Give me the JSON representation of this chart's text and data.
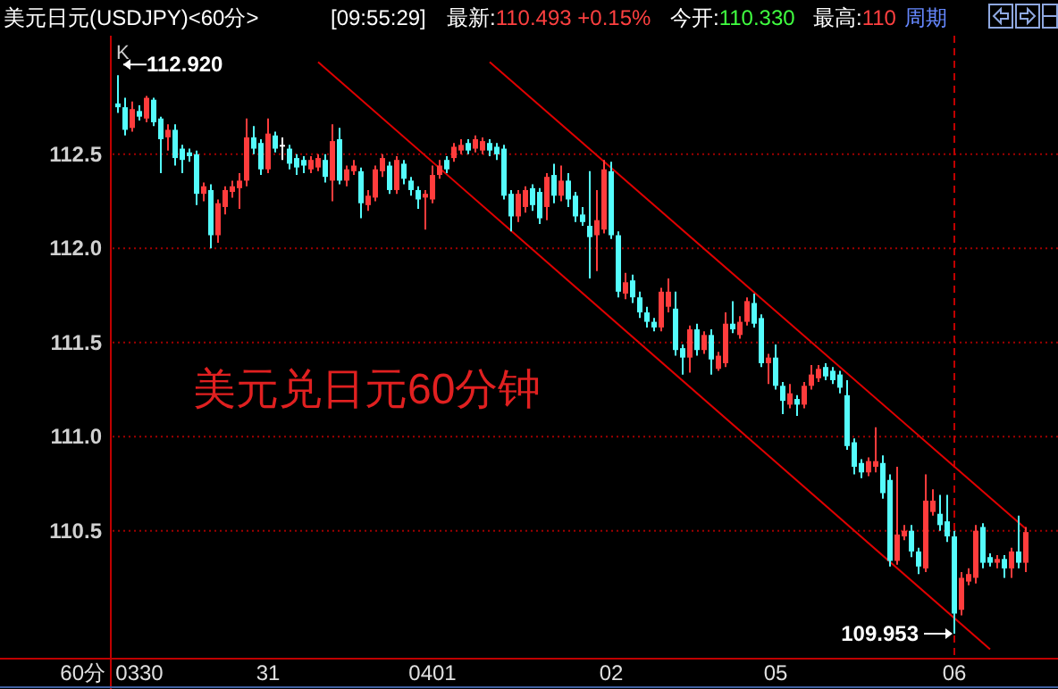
{
  "chart_data": {
    "type": "candlestick",
    "title": "美元日元(USDJPY)<60分>",
    "categories": [
      null,
      null,
      null,
      "0330",
      null,
      null,
      null,
      null,
      null,
      null,
      null,
      null,
      null,
      null,
      null,
      null,
      null,
      null,
      null,
      null,
      null,
      "31",
      null,
      null,
      null,
      null,
      null,
      null,
      null,
      null,
      null,
      null,
      null,
      null,
      null,
      null,
      null,
      null,
      null,
      null,
      null,
      null,
      null,
      null,
      "0401",
      null,
      null,
      null,
      null,
      null,
      null,
      null,
      null,
      null,
      null,
      null,
      null,
      null,
      null,
      null,
      null,
      null,
      null,
      null,
      null,
      null,
      null,
      null,
      null,
      "02",
      null,
      null,
      null,
      null,
      null,
      null,
      null,
      null,
      null,
      null,
      null,
      null,
      null,
      null,
      null,
      null,
      null,
      null,
      null,
      null,
      null,
      null,
      "05",
      null,
      null,
      null,
      null,
      null,
      null,
      null,
      null,
      null,
      null,
      null,
      null,
      null,
      null,
      null,
      null,
      null,
      null,
      null,
      null,
      null,
      null,
      null,
      null,
      "06",
      null,
      null,
      null,
      null,
      null,
      null,
      null,
      null,
      null,
      null
    ],
    "series": [
      {
        "type": "candlestick",
        "ohlc": [
          [
            112.77,
            112.92,
            112.72,
            112.75
          ],
          [
            112.75,
            112.8,
            112.6,
            112.63
          ],
          [
            112.64,
            112.78,
            112.62,
            112.74
          ],
          [
            112.73,
            112.76,
            112.68,
            112.7
          ],
          [
            112.69,
            112.81,
            112.67,
            112.8
          ],
          [
            112.79,
            112.8,
            112.65,
            112.67
          ],
          [
            112.69,
            112.7,
            112.4,
            112.58
          ],
          [
            112.59,
            112.66,
            112.52,
            112.63
          ],
          [
            112.63,
            112.66,
            112.44,
            112.48
          ],
          [
            112.53,
            112.55,
            112.4,
            112.47
          ],
          [
            112.51,
            112.53,
            112.46,
            112.49
          ],
          [
            112.5,
            112.52,
            112.23,
            112.29
          ],
          [
            112.29,
            112.35,
            112.25,
            112.33
          ],
          [
            112.31,
            112.34,
            112.0,
            112.07
          ],
          [
            112.07,
            112.26,
            112.03,
            112.24
          ],
          [
            112.22,
            112.33,
            112.18,
            112.31
          ],
          [
            112.3,
            112.36,
            112.27,
            112.33
          ],
          [
            112.32,
            112.4,
            112.21,
            112.36
          ],
          [
            112.36,
            112.69,
            112.33,
            112.59
          ],
          [
            112.59,
            112.65,
            112.5,
            112.53
          ],
          [
            112.56,
            112.58,
            112.39,
            112.42
          ],
          [
            112.42,
            112.69,
            112.4,
            112.61
          ],
          [
            112.6,
            112.62,
            112.51,
            112.53
          ],
          [
            112.55,
            112.59,
            112.47,
            112.55
          ],
          [
            112.53,
            112.55,
            112.42,
            112.45
          ],
          [
            112.48,
            112.5,
            112.39,
            112.43
          ],
          [
            112.47,
            112.49,
            112.4,
            112.44
          ],
          [
            112.42,
            112.49,
            112.4,
            112.47
          ],
          [
            112.43,
            112.5,
            112.41,
            112.48
          ],
          [
            112.47,
            112.5,
            112.35,
            112.38
          ],
          [
            112.36,
            112.66,
            112.25,
            112.57
          ],
          [
            112.58,
            112.64,
            112.34,
            112.36
          ],
          [
            112.36,
            112.44,
            112.33,
            112.42
          ],
          [
            112.41,
            112.47,
            112.39,
            112.44
          ],
          [
            112.41,
            112.43,
            112.16,
            112.24
          ],
          [
            112.23,
            112.31,
            112.2,
            112.28
          ],
          [
            112.27,
            112.44,
            112.25,
            112.42
          ],
          [
            112.41,
            112.5,
            112.38,
            112.48
          ],
          [
            112.44,
            112.46,
            112.29,
            112.31
          ],
          [
            112.31,
            112.49,
            112.29,
            112.47
          ],
          [
            112.45,
            112.47,
            112.34,
            112.37
          ],
          [
            112.36,
            112.38,
            112.28,
            112.31
          ],
          [
            112.31,
            112.33,
            112.21,
            112.26
          ],
          [
            112.27,
            112.31,
            112.1,
            112.29
          ],
          [
            112.26,
            112.44,
            112.24,
            112.39
          ],
          [
            112.39,
            112.47,
            112.37,
            112.44
          ],
          [
            112.47,
            112.49,
            112.4,
            112.42
          ],
          [
            112.48,
            112.56,
            112.46,
            112.54
          ],
          [
            112.52,
            112.58,
            112.5,
            112.55
          ],
          [
            112.56,
            112.58,
            112.5,
            112.52
          ],
          [
            112.53,
            112.6,
            112.51,
            112.58
          ],
          [
            112.52,
            112.59,
            112.5,
            112.57
          ],
          [
            112.56,
            112.58,
            112.49,
            112.52
          ],
          [
            112.54,
            112.56,
            112.47,
            112.5
          ],
          [
            112.53,
            112.55,
            112.26,
            112.28
          ],
          [
            112.29,
            112.31,
            112.09,
            112.17
          ],
          [
            112.17,
            112.31,
            112.14,
            112.29
          ],
          [
            112.22,
            112.33,
            112.19,
            112.31
          ],
          [
            112.32,
            112.34,
            112.2,
            112.23
          ],
          [
            112.3,
            112.32,
            112.13,
            112.16
          ],
          [
            112.22,
            112.4,
            112.15,
            112.38
          ],
          [
            112.39,
            112.45,
            112.24,
            112.28
          ],
          [
            112.28,
            112.44,
            112.25,
            112.36
          ],
          [
            112.36,
            112.4,
            112.22,
            112.26
          ],
          [
            112.28,
            112.3,
            112.14,
            112.17
          ],
          [
            112.18,
            112.22,
            112.12,
            112.14
          ],
          [
            112.12,
            112.41,
            111.84,
            112.06
          ],
          [
            112.07,
            112.31,
            111.88,
            112.15
          ],
          [
            112.1,
            112.47,
            112.08,
            112.42
          ],
          [
            112.41,
            112.46,
            112.05,
            112.07
          ],
          [
            112.07,
            112.09,
            111.74,
            111.77
          ],
          [
            111.76,
            111.87,
            111.73,
            111.82
          ],
          [
            111.83,
            111.86,
            111.71,
            111.74
          ],
          [
            111.74,
            111.77,
            111.63,
            111.66
          ],
          [
            111.66,
            111.69,
            111.58,
            111.61
          ],
          [
            111.61,
            111.63,
            111.56,
            111.58
          ],
          [
            111.58,
            111.79,
            111.56,
            111.77
          ],
          [
            111.69,
            111.84,
            111.66,
            111.77
          ],
          [
            111.68,
            111.77,
            111.43,
            111.46
          ],
          [
            111.47,
            111.49,
            111.33,
            111.42
          ],
          [
            111.42,
            111.59,
            111.34,
            111.57
          ],
          [
            111.57,
            111.6,
            111.43,
            111.46
          ],
          [
            111.46,
            111.56,
            111.44,
            111.54
          ],
          [
            111.54,
            111.57,
            111.33,
            111.41
          ],
          [
            111.36,
            111.45,
            111.35,
            111.43
          ],
          [
            111.39,
            111.66,
            111.37,
            111.6
          ],
          [
            111.6,
            111.72,
            111.55,
            111.57
          ],
          [
            111.54,
            111.64,
            111.52,
            111.61
          ],
          [
            111.61,
            111.74,
            111.59,
            111.72
          ],
          [
            111.71,
            111.76,
            111.58,
            111.6
          ],
          [
            111.63,
            111.65,
            111.37,
            111.39
          ],
          [
            111.39,
            111.44,
            111.28,
            111.42
          ],
          [
            111.42,
            111.49,
            111.25,
            111.27
          ],
          [
            111.27,
            111.29,
            111.12,
            111.19
          ],
          [
            111.17,
            111.28,
            111.15,
            111.23
          ],
          [
            111.2,
            111.22,
            111.11,
            111.17
          ],
          [
            111.17,
            111.29,
            111.15,
            111.27
          ],
          [
            111.27,
            111.38,
            111.25,
            111.33
          ],
          [
            111.31,
            111.38,
            111.29,
            111.36
          ],
          [
            111.37,
            111.39,
            111.3,
            111.32
          ],
          [
            111.35,
            111.37,
            111.28,
            111.3
          ],
          [
            111.33,
            111.35,
            111.23,
            111.26
          ],
          [
            111.22,
            111.3,
            110.93,
            110.95
          ],
          [
            110.97,
            110.99,
            110.8,
            110.84
          ],
          [
            110.86,
            110.88,
            110.78,
            110.81
          ],
          [
            110.81,
            110.89,
            110.79,
            110.87
          ],
          [
            110.84,
            111.05,
            110.81,
            110.87
          ],
          [
            110.86,
            110.9,
            110.67,
            110.7
          ],
          [
            110.77,
            110.8,
            110.31,
            110.34
          ],
          [
            110.34,
            110.84,
            110.32,
            110.48
          ],
          [
            110.47,
            110.53,
            110.45,
            110.5
          ],
          [
            110.5,
            110.53,
            110.36,
            110.39
          ],
          [
            110.39,
            110.41,
            110.27,
            110.31
          ],
          [
            110.3,
            110.8,
            110.28,
            110.66
          ],
          [
            110.6,
            110.72,
            110.58,
            110.66
          ],
          [
            110.59,
            110.69,
            110.5,
            110.53
          ],
          [
            110.55,
            110.69,
            110.44,
            110.47
          ],
          [
            110.47,
            110.5,
            109.953,
            110.06
          ],
          [
            110.08,
            110.28,
            110.05,
            110.25
          ],
          [
            110.23,
            110.3,
            110.21,
            110.27
          ],
          [
            110.25,
            110.53,
            110.22,
            110.5
          ],
          [
            110.52,
            110.54,
            110.3,
            110.33
          ],
          [
            110.36,
            110.38,
            110.31,
            110.33
          ],
          [
            110.33,
            110.37,
            110.3,
            110.35
          ],
          [
            110.35,
            110.37,
            110.25,
            110.3
          ],
          [
            110.3,
            110.41,
            110.25,
            110.39
          ],
          [
            110.39,
            110.58,
            110.3,
            110.33
          ],
          [
            110.33,
            110.52,
            110.28,
            110.493
          ]
        ],
        "colors": [
          "#54fcfc",
          "#54fcfc",
          "#ff3c3c",
          "#54fcfc",
          "#ff3c3c",
          "#54fcfc",
          "#54fcfc",
          "#ff3c3c",
          "#54fcfc",
          "#54fcfc",
          "#54fcfc",
          "#54fcfc",
          "#ff3c3c",
          "#54fcfc",
          "#ff3c3c",
          "#ff3c3c",
          "#ff3c3c",
          "#ff3c3c",
          "#ff3c3c",
          "#54fcfc",
          "#54fcfc",
          "#ff3c3c",
          "#54fcfc",
          "#ffffff",
          "#54fcfc",
          "#54fcfc",
          "#54fcfc",
          "#ff3c3c",
          "#ff3c3c",
          "#54fcfc",
          "#ff3c3c",
          "#54fcfc",
          "#ff3c3c",
          "#ff3c3c",
          "#54fcfc",
          "#ff3c3c",
          "#ff3c3c",
          "#ff3c3c",
          "#54fcfc",
          "#ff3c3c",
          "#54fcfc",
          "#54fcfc",
          "#54fcfc",
          "#ff3c3c",
          "#ff3c3c",
          "#ff3c3c",
          "#54fcfc",
          "#ff3c3c",
          "#ff3c3c",
          "#54fcfc",
          "#ff3c3c",
          "#ff3c3c",
          "#54fcfc",
          "#54fcfc",
          "#54fcfc",
          "#54fcfc",
          "#ff3c3c",
          "#ff3c3c",
          "#54fcfc",
          "#54fcfc",
          "#ff3c3c",
          "#54fcfc",
          "#ff3c3c",
          "#54fcfc",
          "#54fcfc",
          "#54fcfc",
          "#54fcfc",
          "#ff3c3c",
          "#ff3c3c",
          "#54fcfc",
          "#54fcfc",
          "#ff3c3c",
          "#54fcfc",
          "#54fcfc",
          "#54fcfc",
          "#54fcfc",
          "#ff3c3c",
          "#ff3c3c",
          "#54fcfc",
          "#54fcfc",
          "#ff3c3c",
          "#54fcfc",
          "#ff3c3c",
          "#54fcfc",
          "#ff3c3c",
          "#ff3c3c",
          "#54fcfc",
          "#ff3c3c",
          "#ff3c3c",
          "#54fcfc",
          "#54fcfc",
          "#ff3c3c",
          "#54fcfc",
          "#54fcfc",
          "#ff3c3c",
          "#54fcfc",
          "#ff3c3c",
          "#ff3c3c",
          "#ff3c3c",
          "#54fcfc",
          "#54fcfc",
          "#54fcfc",
          "#54fcfc",
          "#54fcfc",
          "#54fcfc",
          "#ff3c3c",
          "#ff3c3c",
          "#54fcfc",
          "#54fcfc",
          "#ff3c3c",
          "#ff3c3c",
          "#54fcfc",
          "#54fcfc",
          "#ff3c3c",
          "#ff3c3c",
          "#54fcfc",
          "#54fcfc",
          "#54fcfc",
          "#ff3c3c",
          "#ff3c3c",
          "#ff3c3c",
          "#54fcfc",
          "#54fcfc",
          "#ff3c3c",
          "#54fcfc",
          "#ff3c3c",
          "#54fcfc",
          "#ff3c3c"
        ]
      },
      {
        "type": "line",
        "color": "#e00000",
        "values": [
          null,
          null,
          null,
          null,
          null,
          null,
          null,
          null,
          null,
          null,
          null,
          null,
          null,
          null,
          null,
          null,
          null,
          null,
          null,
          null,
          null,
          null,
          null,
          null,
          null,
          null,
          null,
          null,
          112.99,
          null,
          null,
          null,
          null,
          null,
          null,
          null,
          null,
          null,
          null,
          null,
          null,
          null,
          null,
          null,
          null,
          null,
          null,
          null,
          null,
          null,
          null,
          null,
          null,
          null,
          null,
          null,
          null,
          null,
          null,
          null,
          null,
          null,
          null,
          null,
          null,
          null,
          null,
          null,
          null,
          null,
          null,
          null,
          null,
          null,
          null,
          null,
          null,
          null,
          null,
          null,
          null,
          null,
          null,
          null,
          null,
          null,
          null,
          null,
          null,
          null,
          null,
          null,
          null,
          null,
          null,
          null,
          null,
          null,
          null,
          null,
          null,
          null,
          null,
          null,
          null,
          null,
          null,
          null,
          null,
          null,
          null,
          null,
          null,
          null,
          null,
          null,
          null,
          null,
          null,
          null,
          null,
          null,
          109.87,
          null,
          null,
          null,
          null,
          null
        ]
      },
      {
        "type": "line",
        "color": "#e00000",
        "values": [
          null,
          null,
          null,
          null,
          null,
          null,
          null,
          null,
          null,
          null,
          null,
          null,
          null,
          null,
          null,
          null,
          null,
          null,
          null,
          null,
          null,
          null,
          null,
          null,
          null,
          null,
          null,
          null,
          null,
          null,
          null,
          null,
          null,
          null,
          null,
          null,
          null,
          null,
          null,
          null,
          null,
          null,
          null,
          null,
          null,
          null,
          null,
          null,
          null,
          null,
          null,
          null,
          112.99,
          null,
          null,
          null,
          null,
          null,
          null,
          null,
          null,
          null,
          null,
          null,
          null,
          null,
          null,
          null,
          null,
          null,
          null,
          null,
          null,
          null,
          null,
          null,
          null,
          null,
          null,
          null,
          null,
          null,
          null,
          null,
          null,
          null,
          null,
          null,
          null,
          null,
          null,
          null,
          null,
          null,
          null,
          null,
          null,
          null,
          null,
          null,
          null,
          null,
          null,
          null,
          null,
          null,
          null,
          null,
          null,
          null,
          null,
          null,
          null,
          null,
          null,
          null,
          null,
          null,
          null,
          null,
          null,
          null,
          null,
          null,
          null,
          null,
          null,
          110.51
        ]
      }
    ],
    "ylim": [
      109.83,
      113.13
    ],
    "yticks": [
      110.5,
      {
        "value": 111,
        "label": "111.0"
      },
      111.5,
      {
        "value": 112,
        "label": "112.0"
      },
      112.5
    ],
    "grid": "y",
    "ref_lines": [
      {
        "axis": "x",
        "value": "06",
        "color": "#c00000",
        "line_style": "dashed"
      }
    ],
    "annotations": [
      "[09:55:29]",
      "最新:110.493 +0.15%",
      "今开:110.330",
      "最高:110",
      "周期",
      "K",
      "112.920",
      "109.953",
      "美元兑日元60分钟"
    ],
    "xlabel": "60分"
  }
}
